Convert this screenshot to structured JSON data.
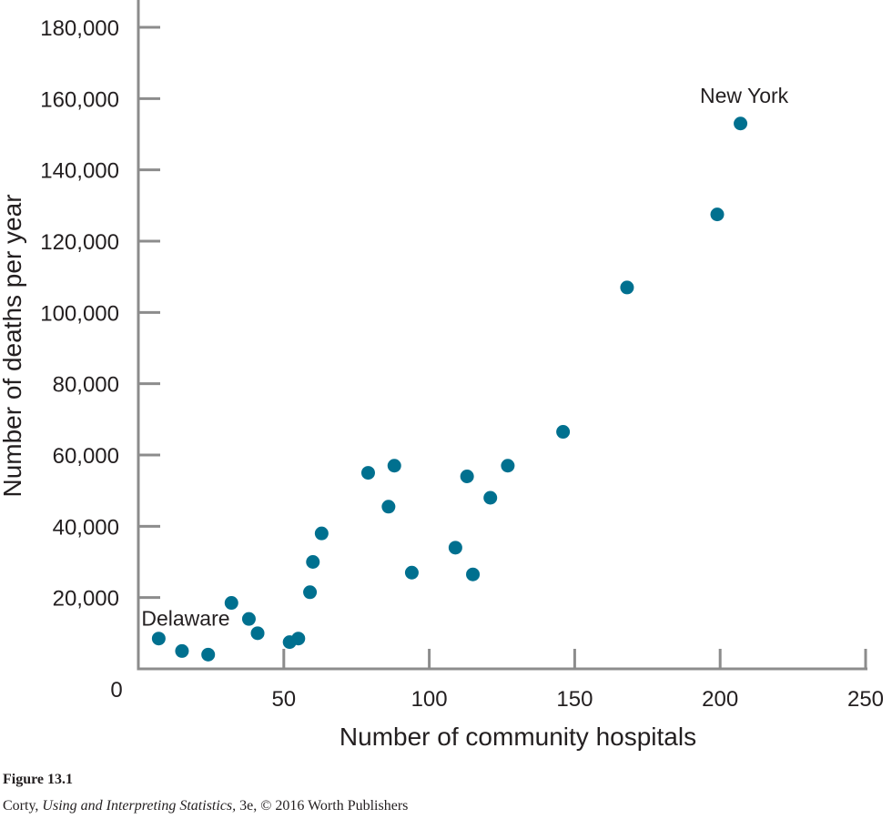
{
  "chart_data": {
    "type": "scatter",
    "title": "",
    "xlabel": "Number of community hospitals",
    "ylabel": "Number of deaths per year",
    "xlim": [
      0,
      250
    ],
    "ylim": [
      0,
      180000
    ],
    "xticks": [
      50,
      100,
      150,
      200,
      250
    ],
    "xtick_labels": [
      "50",
      "100",
      "150",
      "200",
      "250"
    ],
    "yticks": [
      20000,
      40000,
      60000,
      80000,
      100000,
      120000,
      140000,
      160000,
      180000
    ],
    "ytick_labels": [
      "20,000",
      "40,000",
      "60,000",
      "80,000",
      "100,000",
      "120,000",
      "140,000",
      "160,000",
      "180,000"
    ],
    "origin_label": "0",
    "grid": false,
    "marker_color": "#00708f",
    "points": [
      {
        "x": 7,
        "y": 8500
      },
      {
        "x": 15,
        "y": 5000
      },
      {
        "x": 24,
        "y": 4000
      },
      {
        "x": 32,
        "y": 18500
      },
      {
        "x": 38,
        "y": 14000
      },
      {
        "x": 41,
        "y": 10000
      },
      {
        "x": 52,
        "y": 7500
      },
      {
        "x": 55,
        "y": 8500
      },
      {
        "x": 59,
        "y": 21500
      },
      {
        "x": 60,
        "y": 30000
      },
      {
        "x": 63,
        "y": 38000
      },
      {
        "x": 79,
        "y": 55000
      },
      {
        "x": 86,
        "y": 45500
      },
      {
        "x": 88,
        "y": 57000
      },
      {
        "x": 94,
        "y": 27000
      },
      {
        "x": 109,
        "y": 34000
      },
      {
        "x": 113,
        "y": 54000
      },
      {
        "x": 115,
        "y": 26500
      },
      {
        "x": 121,
        "y": 48000
      },
      {
        "x": 127,
        "y": 57000
      },
      {
        "x": 146,
        "y": 66500
      },
      {
        "x": 168,
        "y": 107000
      },
      {
        "x": 199,
        "y": 127500
      },
      {
        "x": 207,
        "y": 153000
      }
    ],
    "annotations": [
      {
        "text": "Delaware",
        "x": 7,
        "y": 8500
      },
      {
        "text": "New York",
        "x": 207,
        "y": 153000
      }
    ]
  },
  "caption": {
    "figure_label": "Figure 13.1",
    "credit_prefix": "Corty, ",
    "credit_book": "Using and Interpreting Statistics,",
    "credit_suffix": " 3e, © 2016 Worth Publishers"
  }
}
